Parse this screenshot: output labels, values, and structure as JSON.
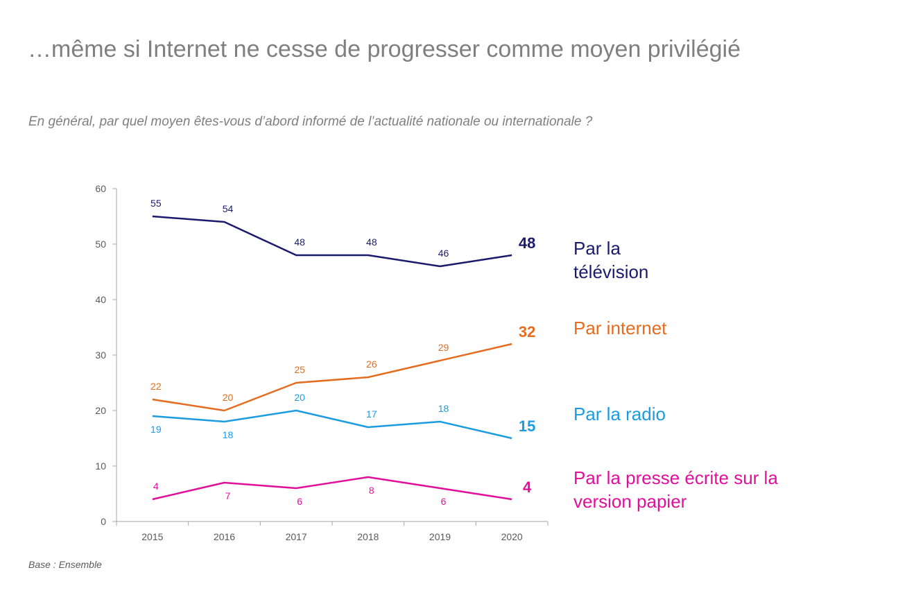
{
  "title": "…même si Internet ne cesse de progresser comme moyen privilégié",
  "subtitle": "En général, par quel moyen êtes-vous d’abord informé de l’actualité nationale ou internationale ?",
  "source": "Base : Ensemble",
  "chart_data": {
    "type": "line",
    "x": [
      "2015",
      "2016",
      "2017",
      "2018",
      "2019",
      "2020"
    ],
    "ylim": [
      0,
      60
    ],
    "yticks": [
      0,
      10,
      20,
      30,
      40,
      50,
      60
    ],
    "grid": false,
    "legend": "right, aligned with each line end",
    "series": [
      {
        "key": "tv",
        "name": "Par la télévision",
        "color": "#1a1a6e",
        "values": [
          55,
          54,
          48,
          48,
          46,
          48
        ]
      },
      {
        "key": "internet",
        "name": "Par internet",
        "color": "#e46c1f",
        "values": [
          22,
          20,
          25,
          26,
          29,
          32
        ]
      },
      {
        "key": "radio",
        "name": "Par la radio",
        "color": "#1b9be0",
        "values": [
          19,
          18,
          20,
          17,
          18,
          15
        ]
      },
      {
        "key": "presse",
        "name": "Par la presse écrite sur la version papier",
        "color": "#e0109b",
        "values": [
          4,
          7,
          6,
          8,
          6,
          4
        ]
      }
    ]
  },
  "legend": {
    "tv": "Par la\ntélévision",
    "internet": "Par internet",
    "radio": "Par la radio",
    "presse": "Par la presse écrite sur la\nversion papier"
  }
}
